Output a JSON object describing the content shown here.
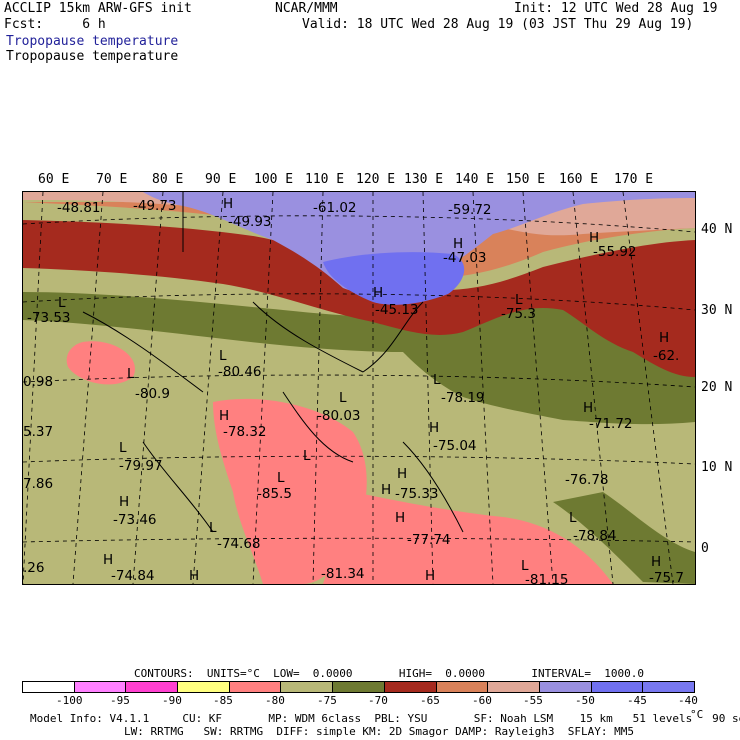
{
  "header": {
    "line1_left": "ACCLIP 15km ARW-GFS init",
    "line1_center": "NCAR/MMM",
    "line1_right": "Init: 12 UTC Wed 28 Aug 19",
    "line2_left": "Fcst:     6 h",
    "line2_right": "Valid: 18 UTC Wed 28 Aug 19 (03 JST Thu 29 Aug 19)",
    "field_title_1": "Tropopause temperature",
    "field_title_2": "Tropopause temperature"
  },
  "longitude_labels": [
    "60 E",
    "70 E",
    "80 E",
    "90 E",
    "100 E",
    "110 E",
    "120 E",
    "130 E",
    "140 E",
    "150 E",
    "160 E",
    "170 E"
  ],
  "latitude_labels": [
    "40 N",
    "30 N",
    "20 N",
    "10 N",
    "0"
  ],
  "colors": {
    "c_lt_-100": "#ffffff",
    "c_-100_-95": "#ff80ff",
    "c_-95_-90": "#ff40d0",
    "c_-90_-85": "#ffff80",
    "c_-85_-80": "#ff8080",
    "c_-80_-75": "#b8b878",
    "c_-75_-70": "#6e7a32",
    "c_-70_-65": "#a52a1e",
    "c_-65_-60": "#d9825a",
    "c_-60_-55": "#e0a898",
    "c_-55_-50": "#9a90e0",
    "c_-50_-45": "#7070f0",
    "c_gt_-45": "#7878f0"
  },
  "map_labels": [
    {
      "text": "-48.81"
    },
    {
      "text": "-49.73"
    },
    {
      "text": "H"
    },
    {
      "text": "-49.93"
    },
    {
      "text": "-61.02"
    },
    {
      "text": "-59.72"
    },
    {
      "text": "H"
    },
    {
      "text": "-47.03"
    },
    {
      "text": "H"
    },
    {
      "text": "-55.92"
    },
    {
      "text": "H"
    },
    {
      "text": "-45.13"
    },
    {
      "text": "L"
    },
    {
      "text": "-75.3"
    },
    {
      "text": "L"
    },
    {
      "text": "-73.53"
    },
    {
      "text": "H"
    },
    {
      "text": "-62."
    },
    {
      "text": "L"
    },
    {
      "text": "-80.46"
    },
    {
      "text": "0.98"
    },
    {
      "text": "L"
    },
    {
      "text": "-80.9"
    },
    {
      "text": "L"
    },
    {
      "text": "-80.03"
    },
    {
      "text": "L"
    },
    {
      "text": "-78.19"
    },
    {
      "text": "H"
    },
    {
      "text": "-78.32"
    },
    {
      "text": "H"
    },
    {
      "text": "-71.72"
    },
    {
      "text": "5.37"
    },
    {
      "text": "L"
    },
    {
      "text": "-79.97"
    },
    {
      "text": "H"
    },
    {
      "text": "-75.04"
    },
    {
      "text": "L"
    },
    {
      "text": "H"
    },
    {
      "text": "-76.78"
    },
    {
      "text": "7.86"
    },
    {
      "text": "L"
    },
    {
      "text": "-85.5"
    },
    {
      "text": "H"
    },
    {
      "text": "-75.33"
    },
    {
      "text": "H"
    },
    {
      "text": "-73.46"
    },
    {
      "text": "L"
    },
    {
      "text": "H"
    },
    {
      "text": "L"
    },
    {
      "text": "-78.84"
    },
    {
      "text": "-74.68"
    },
    {
      "text": "-77.74"
    },
    {
      "text": "H"
    },
    {
      "text": ".26"
    },
    {
      "text": "-74.84"
    },
    {
      "text": "H"
    },
    {
      "text": "-81.34"
    },
    {
      "text": "H"
    },
    {
      "text": "L"
    },
    {
      "text": "-81.15"
    },
    {
      "text": "H"
    },
    {
      "text": "-75.7"
    }
  ],
  "colorbar": {
    "header_text": "CONTOURS:  UNITS=°C  LOW=  0.0000       HIGH=  0.0000       INTERVAL=  1000.0",
    "ticks": [
      "-100",
      "-95",
      "-90",
      "-85",
      "-80",
      "-75",
      "-70",
      "-65",
      "-60",
      "-55",
      "-50",
      "-45",
      "-40",
      "°C"
    ]
  },
  "footer": {
    "line1": "Model Info: V4.1.1     CU: KF       MP: WDM 6class  PBL: YSU       SF: Noah LSM    15 km   51 levels   90 sec",
    "line2": "LW: RRTMG   SW: RRTMG  DIFF: simple KM: 2D Smagor DAMP: Rayleigh3  SFLAY: MM5"
  }
}
